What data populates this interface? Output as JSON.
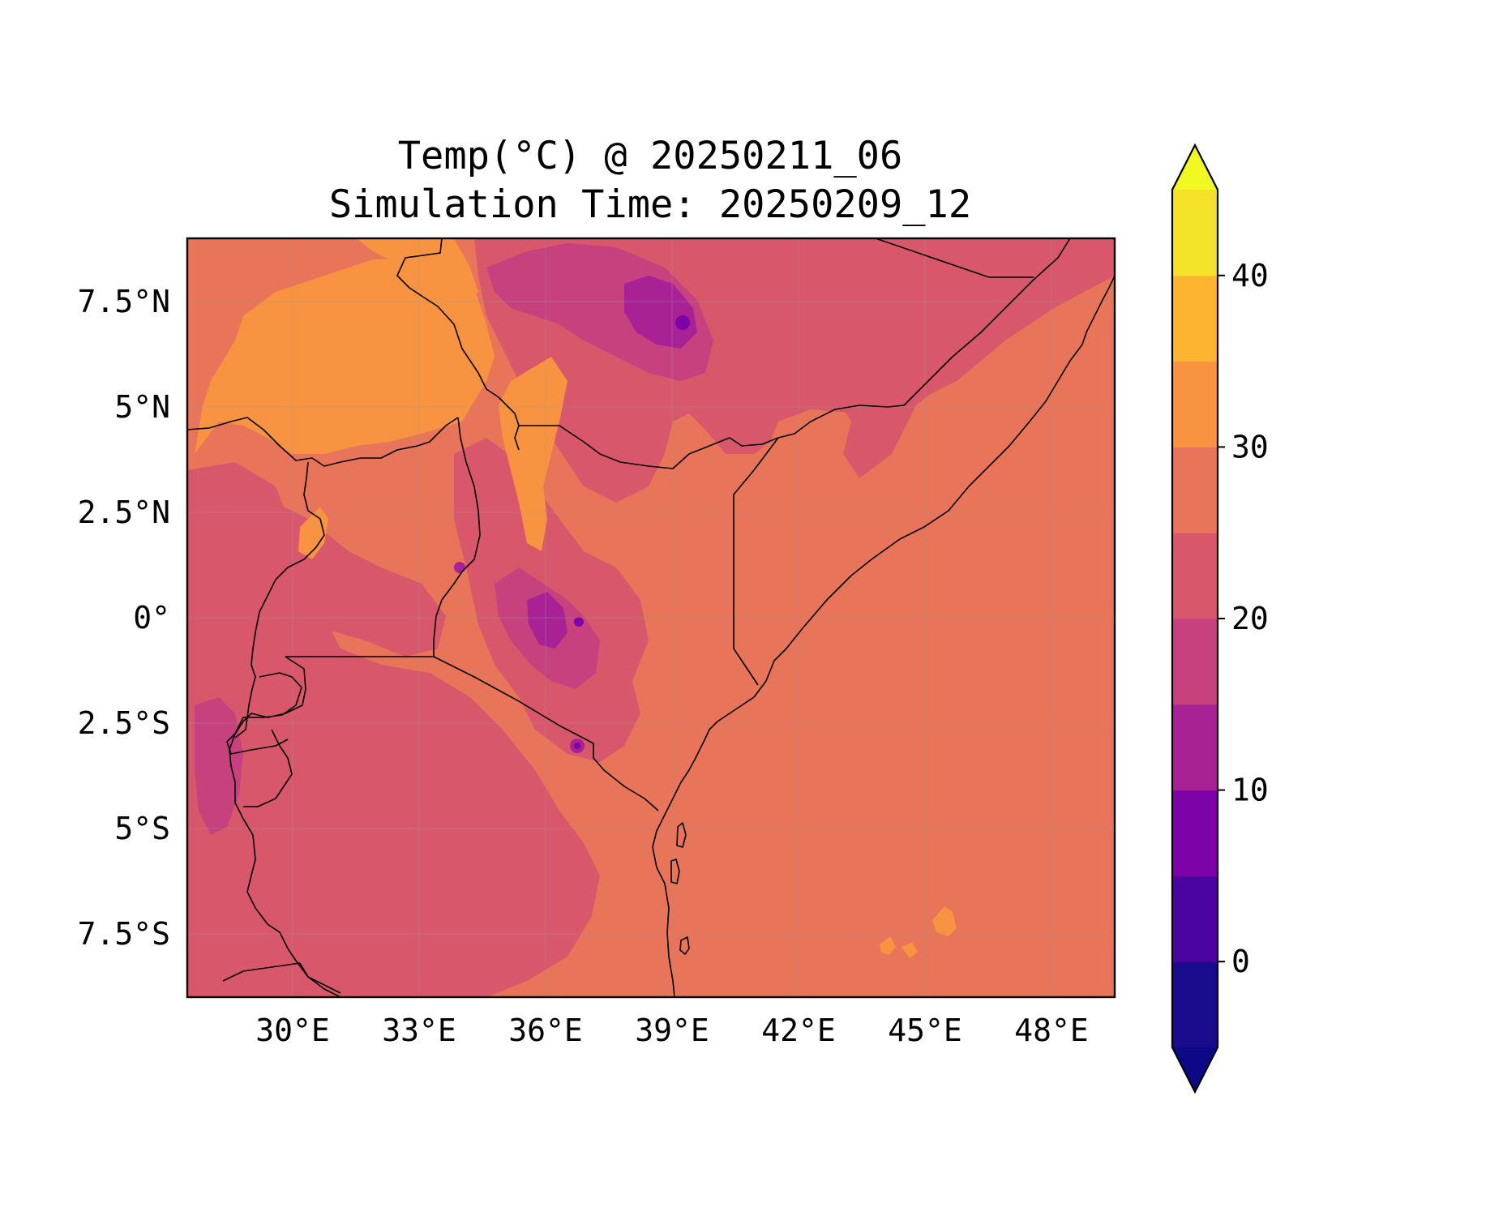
{
  "title": {
    "line1": "Temp(°C) @ 20250211_06",
    "line2": "Simulation Time: 20250209_12"
  },
  "map": {
    "lon_range": [
      27.5,
      49.5
    ],
    "lat_range": [
      -9.0,
      9.0
    ],
    "x_ticks": [
      {
        "lon": 30,
        "label": "30°E"
      },
      {
        "lon": 33,
        "label": "33°E"
      },
      {
        "lon": 36,
        "label": "36°E"
      },
      {
        "lon": 39,
        "label": "39°E"
      },
      {
        "lon": 42,
        "label": "42°E"
      },
      {
        "lon": 45,
        "label": "45°E"
      },
      {
        "lon": 48,
        "label": "48°E"
      }
    ],
    "y_ticks": [
      {
        "lat": 7.5,
        "label": "7.5°N"
      },
      {
        "lat": 5,
        "label": "5°N"
      },
      {
        "lat": 2.5,
        "label": "2.5°N"
      },
      {
        "lat": 0,
        "label": "0°"
      },
      {
        "lat": -2.5,
        "label": "2.5°S"
      },
      {
        "lat": -5,
        "label": "5°S"
      },
      {
        "lat": -7.5,
        "label": "7.5°S"
      }
    ],
    "gridlines": true,
    "dominant_levels": {
      "ocean": "25-30",
      "lowland": "25-30",
      "highland": "20-25",
      "north_plains": "30-35"
    }
  },
  "colorbar": {
    "min": -5,
    "max": 45,
    "extend": "both",
    "levels": [
      -5,
      0,
      5,
      10,
      15,
      20,
      25,
      30,
      35,
      40,
      45
    ],
    "colors": [
      "#1a0a8c",
      "#4b03a1",
      "#7d03a8",
      "#a82296",
      "#c6417d",
      "#d8576b",
      "#e8745a",
      "#f89441",
      "#fdb42f",
      "#f3e227"
    ],
    "under_color": "#0d0887",
    "over_color": "#f0f921",
    "ticks": [
      {
        "value": 0,
        "label": "0"
      },
      {
        "value": 10,
        "label": "10"
      },
      {
        "value": 20,
        "label": "20"
      },
      {
        "value": 30,
        "label": "30"
      },
      {
        "value": 40,
        "label": "40"
      }
    ]
  }
}
